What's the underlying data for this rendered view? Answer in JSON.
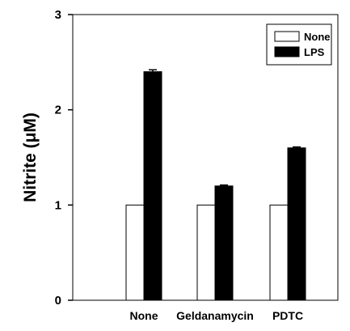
{
  "chart_data": {
    "type": "bar",
    "title": "",
    "xlabel": "",
    "ylabel": "Nitrite (μM)",
    "ylim": [
      0,
      3
    ],
    "yticks": [
      0,
      1,
      2,
      3
    ],
    "categories": [
      "None",
      "Geldanamycin",
      "PDTC"
    ],
    "series": [
      {
        "name": "None",
        "values": [
          1.0,
          1.0,
          1.0
        ],
        "errors": [
          0,
          0,
          0
        ],
        "color": "#ffffff"
      },
      {
        "name": "LPS",
        "values": [
          2.4,
          1.2,
          1.6
        ],
        "errors": [
          0.02,
          0.01,
          0.01
        ],
        "color": "#000000"
      }
    ],
    "legend_position": "top-right",
    "grid": false
  }
}
